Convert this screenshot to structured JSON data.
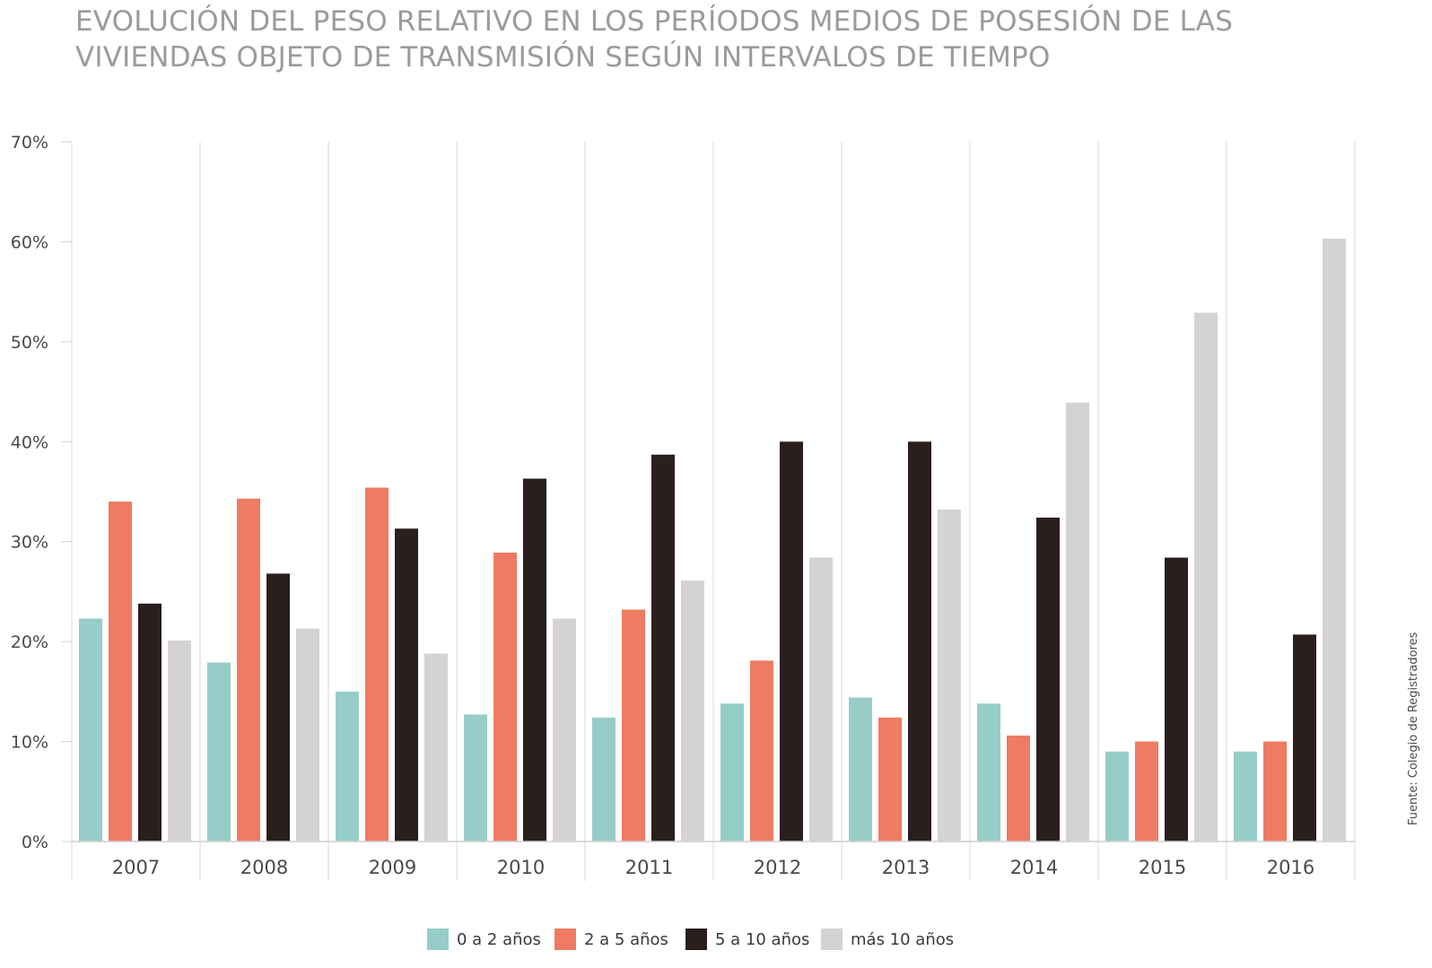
{
  "chart_data": {
    "type": "bar",
    "title_lines": [
      "EVOLUCIÓN DEL PESO RELATIVO EN LOS PERÍODOS MEDIOS DE POSESIÓN DE LAS",
      "VIVIENDAS OBJETO DE TRANSMISIÓN SEGÚN INTERVALOS DE TIEMPO"
    ],
    "categories": [
      "2007",
      "2008",
      "2009",
      "2010",
      "2011",
      "2012",
      "2013",
      "2014",
      "2015",
      "2016"
    ],
    "ylim": [
      0,
      70
    ],
    "yticks": [
      {
        "value": 0,
        "label": "0%"
      },
      {
        "value": 10,
        "label": "10%"
      },
      {
        "value": 20,
        "label": "20%"
      },
      {
        "value": 30,
        "label": "30%"
      },
      {
        "value": 40,
        "label": "40%"
      },
      {
        "value": 50,
        "label": "50%"
      },
      {
        "value": 60,
        "label": "60%"
      },
      {
        "value": 70,
        "label": "70%"
      }
    ],
    "grid": "vertical category separators",
    "legend_position": "bottom-center",
    "series": [
      {
        "name": "0 a 2 años",
        "color": "#96cdc8",
        "values": [
          22.3,
          17.9,
          15.0,
          12.7,
          12.4,
          13.8,
          14.4,
          13.8,
          9.0,
          9.0
        ]
      },
      {
        "name": "2 a 5 años",
        "color": "#ee7b62",
        "values": [
          34.0,
          34.3,
          35.4,
          28.9,
          23.2,
          18.1,
          12.4,
          10.6,
          10.0,
          10.0
        ]
      },
      {
        "name": "5 a 10 años",
        "color": "#2b1e1e",
        "values": [
          23.8,
          26.8,
          31.3,
          36.3,
          38.7,
          40.0,
          40.0,
          32.4,
          28.4,
          20.7
        ]
      },
      {
        "name": "más 10 años",
        "color": "#d4d3d2",
        "values": [
          20.1,
          21.3,
          18.8,
          22.3,
          26.1,
          28.4,
          33.2,
          43.9,
          52.9,
          60.3
        ]
      }
    ],
    "source_note": "Fuente: Colegio de Registradores"
  }
}
